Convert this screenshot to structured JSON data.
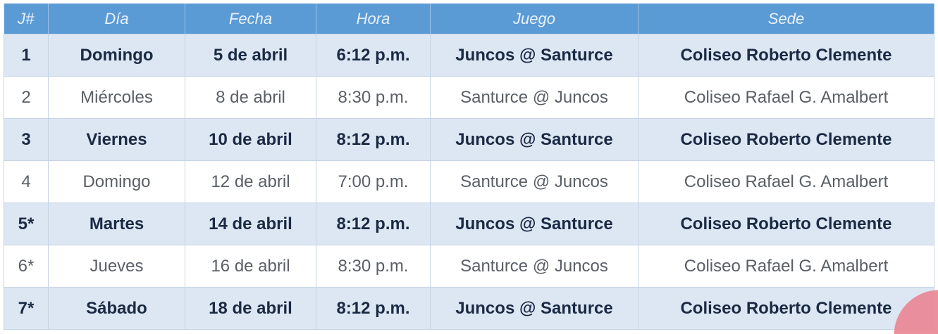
{
  "table": {
    "headers": [
      "J#",
      "Día",
      "Fecha",
      "Hora",
      "Juego",
      "Sede"
    ],
    "rows": [
      [
        "1",
        "Domingo",
        "5 de abril",
        "6:12 p.m.",
        "Juncos @ Santurce",
        "Coliseo Roberto Clemente"
      ],
      [
        "2",
        "Miércoles",
        "8 de abril",
        "8:30 p.m.",
        "Santurce @ Juncos",
        "Coliseo Rafael G. Amalbert"
      ],
      [
        "3",
        "Viernes",
        "10 de abril",
        "8:12 p.m.",
        "Juncos @ Santurce",
        "Coliseo Roberto Clemente"
      ],
      [
        "4",
        "Domingo",
        "12 de abril",
        "7:00 p.m.",
        "Santurce @ Juncos",
        "Coliseo Rafael G. Amalbert"
      ],
      [
        "5*",
        "Martes",
        "14 de abril",
        "8:12 p.m.",
        "Juncos @ Santurce",
        "Coliseo Roberto Clemente"
      ],
      [
        "6*",
        "Jueves",
        "16 de abril",
        "8:30 p.m.",
        "Santurce @ Juncos",
        "Coliseo Rafael G. Amalbert"
      ],
      [
        "7*",
        "Sábado",
        "18 de abril",
        "8:12 p.m.",
        "Juncos @ Santurce",
        "Coliseo Roberto Clemente"
      ]
    ]
  },
  "colors": {
    "header": "#5b9bd5",
    "band": "#dde7f3",
    "accent_circle": "#e98492"
  }
}
